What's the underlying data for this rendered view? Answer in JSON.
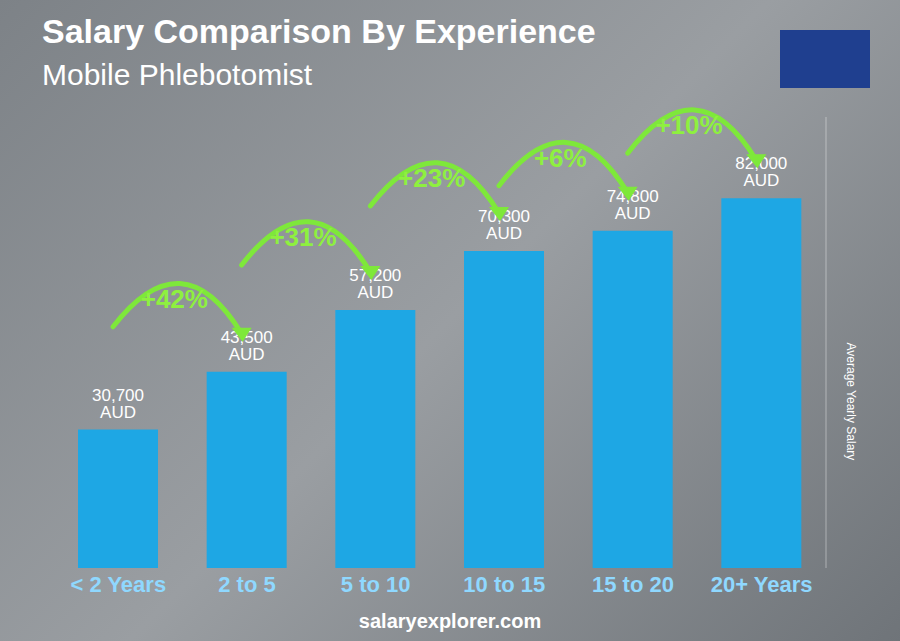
{
  "chart_data": {
    "type": "bar",
    "title": "Salary Comparison By Experience",
    "subtitle": "Mobile Phlebotomist",
    "y_label": "Average Yearly Salary",
    "source": "salaryexplorer.com",
    "categories": [
      "< 2 Years",
      "2 to 5",
      "5 to 10",
      "10 to 15",
      "15 to 20",
      "20+ Years"
    ],
    "values": [
      30700,
      43500,
      57200,
      70300,
      74800,
      82000
    ],
    "value_labels": [
      "30,700 AUD",
      "43,500 AUD",
      "57,200 AUD",
      "70,300 AUD",
      "74,800 AUD",
      "82,000 AUD"
    ],
    "data_labels": true,
    "annotations": [
      "+42%",
      "+31%",
      "+23%",
      "+6%",
      "+10%"
    ],
    "color": "#1ea7e4",
    "ylim": [
      0,
      100000
    ],
    "tick_labels": "x",
    "grid": false
  }
}
